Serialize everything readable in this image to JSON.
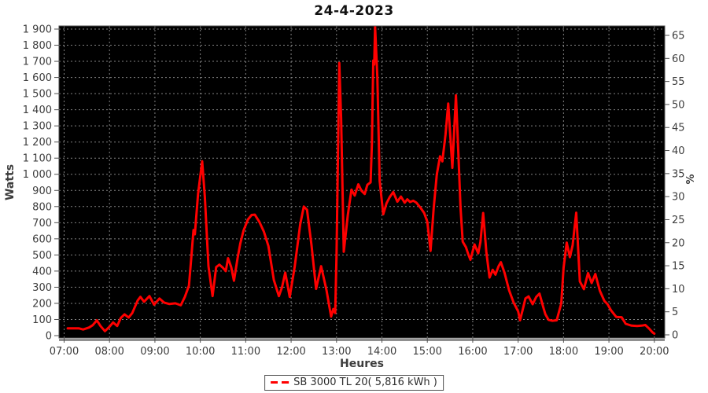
{
  "chart_data": {
    "type": "line",
    "title": "24-4-2023",
    "xlabel": "Heures",
    "ylabel_left": "Watts",
    "ylabel_right": "%",
    "xlim": [
      7,
      20
    ],
    "ylim_left": [
      0,
      1900
    ],
    "ylim_right": [
      0,
      65
    ],
    "grid": "on",
    "plot_bg_color": "#000000",
    "grid_color": "#828282",
    "line_color": "#ff0000",
    "label_color": "#3d3d3d",
    "x_ticks": [
      "07:00",
      "08:00",
      "09:00",
      "10:00",
      "11:00",
      "12:00",
      "13:00",
      "14:00",
      "15:00",
      "16:00",
      "17:00",
      "18:00",
      "19:00",
      "20:00"
    ],
    "y_ticks_left": [
      "0",
      "100",
      "200",
      "300",
      "400",
      "500",
      "600",
      "700",
      "800",
      "900",
      "1 000",
      "1 100",
      "1 200",
      "1 300",
      "1 400",
      "1 500",
      "1 600",
      "1 700",
      "1 800",
      "1 900"
    ],
    "y_ticks_right": [
      "0",
      "5",
      "10",
      "15",
      "20",
      "25",
      "30",
      "35",
      "40",
      "45",
      "50",
      "55",
      "60",
      "65"
    ],
    "x_tick_start": 7,
    "x_tick_step": 1,
    "y_tick_step_left": 100,
    "y_tick_step_right": 5,
    "legend": {
      "label": "SB 3000 TL 20( 5,816 kWh )",
      "color": "#ff0000",
      "position": "bottom"
    },
    "series": [
      {
        "name": "SB 3000 TL 20",
        "color": "#ff0000",
        "points": [
          [
            7.08,
            45
          ],
          [
            7.2,
            45
          ],
          [
            7.33,
            45
          ],
          [
            7.42,
            38
          ],
          [
            7.55,
            50
          ],
          [
            7.63,
            65
          ],
          [
            7.72,
            95
          ],
          [
            7.8,
            60
          ],
          [
            7.9,
            28
          ],
          [
            8.0,
            55
          ],
          [
            8.08,
            82
          ],
          [
            8.17,
            60
          ],
          [
            8.25,
            110
          ],
          [
            8.33,
            132
          ],
          [
            8.42,
            112
          ],
          [
            8.5,
            140
          ],
          [
            8.62,
            218
          ],
          [
            8.68,
            240
          ],
          [
            8.76,
            210
          ],
          [
            8.88,
            245
          ],
          [
            8.98,
            192
          ],
          [
            9.1,
            230
          ],
          [
            9.2,
            205
          ],
          [
            9.32,
            196
          ],
          [
            9.45,
            200
          ],
          [
            9.57,
            188
          ],
          [
            9.66,
            240
          ],
          [
            9.75,
            310
          ],
          [
            9.8,
            480
          ],
          [
            9.85,
            655
          ],
          [
            9.88,
            628
          ],
          [
            9.95,
            880
          ],
          [
            10.04,
            1080
          ],
          [
            10.1,
            860
          ],
          [
            10.18,
            430
          ],
          [
            10.27,
            245
          ],
          [
            10.35,
            425
          ],
          [
            10.42,
            440
          ],
          [
            10.5,
            420
          ],
          [
            10.56,
            400
          ],
          [
            10.61,
            480
          ],
          [
            10.68,
            425
          ],
          [
            10.74,
            340
          ],
          [
            10.82,
            480
          ],
          [
            10.88,
            570
          ],
          [
            10.95,
            650
          ],
          [
            11.05,
            720
          ],
          [
            11.13,
            748
          ],
          [
            11.2,
            750
          ],
          [
            11.3,
            705
          ],
          [
            11.4,
            645
          ],
          [
            11.5,
            555
          ],
          [
            11.62,
            345
          ],
          [
            11.73,
            245
          ],
          [
            11.8,
            300
          ],
          [
            11.87,
            390
          ],
          [
            11.97,
            240
          ],
          [
            12.08,
            430
          ],
          [
            12.2,
            690
          ],
          [
            12.28,
            800
          ],
          [
            12.35,
            780
          ],
          [
            12.45,
            560
          ],
          [
            12.55,
            290
          ],
          [
            12.66,
            430
          ],
          [
            12.78,
            280
          ],
          [
            12.88,
            118
          ],
          [
            12.93,
            165
          ],
          [
            12.97,
            140
          ],
          [
            13.0,
            500
          ],
          [
            13.06,
            1690
          ],
          [
            13.1,
            1350
          ],
          [
            13.16,
            520
          ],
          [
            13.25,
            750
          ],
          [
            13.33,
            905
          ],
          [
            13.4,
            868
          ],
          [
            13.48,
            938
          ],
          [
            13.55,
            898
          ],
          [
            13.62,
            878
          ],
          [
            13.68,
            935
          ],
          [
            13.75,
            950
          ],
          [
            13.78,
            1200
          ],
          [
            13.81,
            1705
          ],
          [
            13.83,
            1680
          ],
          [
            13.85,
            1925
          ],
          [
            13.9,
            1600
          ],
          [
            13.95,
            960
          ],
          [
            14.03,
            752
          ],
          [
            14.1,
            820
          ],
          [
            14.17,
            858
          ],
          [
            14.25,
            890
          ],
          [
            14.34,
            830
          ],
          [
            14.42,
            862
          ],
          [
            14.5,
            824
          ],
          [
            14.56,
            845
          ],
          [
            14.62,
            828
          ],
          [
            14.69,
            836
          ],
          [
            14.76,
            824
          ],
          [
            14.85,
            792
          ],
          [
            14.93,
            760
          ],
          [
            15.0,
            706
          ],
          [
            15.07,
            525
          ],
          [
            15.14,
            790
          ],
          [
            15.21,
            1000
          ],
          [
            15.28,
            1112
          ],
          [
            15.33,
            1080
          ],
          [
            15.4,
            1245
          ],
          [
            15.46,
            1438
          ],
          [
            15.55,
            1040
          ],
          [
            15.63,
            1490
          ],
          [
            15.69,
            1090
          ],
          [
            15.73,
            795
          ],
          [
            15.78,
            582
          ],
          [
            15.85,
            548
          ],
          [
            15.9,
            505
          ],
          [
            15.95,
            470
          ],
          [
            16.04,
            565
          ],
          [
            16.12,
            510
          ],
          [
            16.17,
            580
          ],
          [
            16.23,
            760
          ],
          [
            16.3,
            520
          ],
          [
            16.37,
            360
          ],
          [
            16.44,
            408
          ],
          [
            16.5,
            378
          ],
          [
            16.57,
            430
          ],
          [
            16.62,
            455
          ],
          [
            16.7,
            390
          ],
          [
            16.8,
            282
          ],
          [
            16.9,
            205
          ],
          [
            17.0,
            150
          ],
          [
            17.04,
            95
          ],
          [
            17.1,
            160
          ],
          [
            17.16,
            230
          ],
          [
            17.23,
            243
          ],
          [
            17.32,
            195
          ],
          [
            17.4,
            240
          ],
          [
            17.47,
            260
          ],
          [
            17.55,
            180
          ],
          [
            17.6,
            132
          ],
          [
            17.67,
            98
          ],
          [
            17.75,
            92
          ],
          [
            17.85,
            95
          ],
          [
            17.95,
            200
          ],
          [
            18.0,
            420
          ],
          [
            18.07,
            577
          ],
          [
            18.14,
            486
          ],
          [
            18.2,
            560
          ],
          [
            18.28,
            762
          ],
          [
            18.36,
            336
          ],
          [
            18.45,
            288
          ],
          [
            18.54,
            388
          ],
          [
            18.62,
            326
          ],
          [
            18.7,
            382
          ],
          [
            18.8,
            278
          ],
          [
            18.9,
            215
          ],
          [
            18.97,
            195
          ],
          [
            19.05,
            155
          ],
          [
            19.16,
            116
          ],
          [
            19.28,
            114
          ],
          [
            19.37,
            73
          ],
          [
            19.5,
            62
          ],
          [
            19.62,
            60
          ],
          [
            19.72,
            62
          ],
          [
            19.8,
            66
          ],
          [
            19.88,
            45
          ],
          [
            19.96,
            20
          ],
          [
            20.0,
            12
          ]
        ]
      }
    ]
  }
}
